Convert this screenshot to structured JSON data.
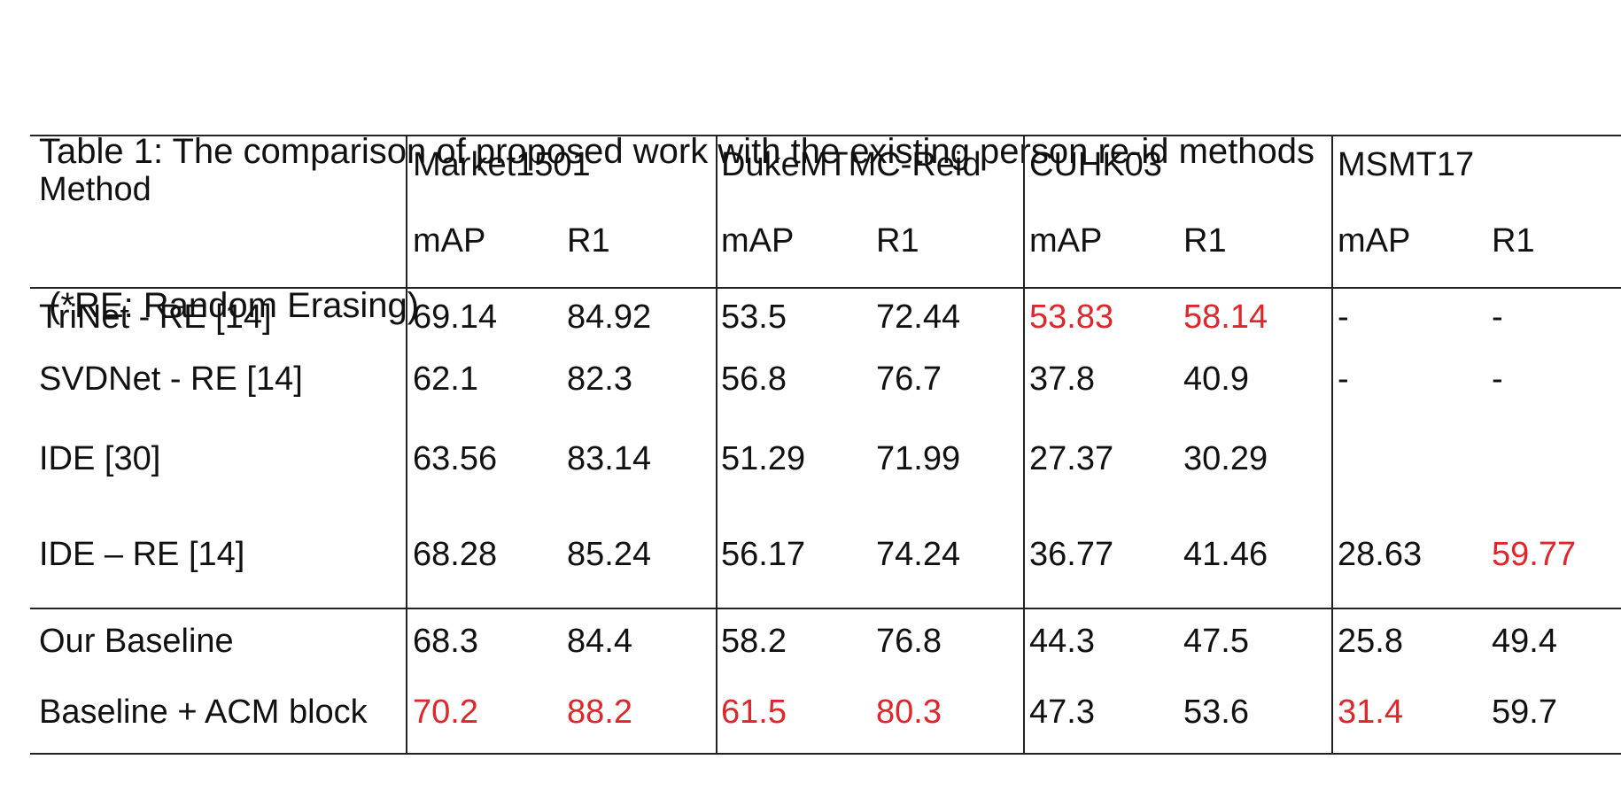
{
  "caption": {
    "line1": "Table 1: The comparison of proposed work with the existing person re-id methods",
    "line2": " (*RE: Random Erasing)"
  },
  "header": {
    "method": "Method",
    "datasets": [
      "Market1501",
      "DukeMTMC-Reid",
      "CUHK03",
      "MSMT17"
    ],
    "metrics": [
      "mAP",
      "R1",
      "mAP",
      "R1",
      "mAP",
      "R1",
      "mAP",
      "R1"
    ]
  },
  "rows": [
    {
      "method": "TriNet - RE [14]",
      "values": [
        "69.14",
        "84.92",
        "53.5",
        "72.44",
        "53.83",
        "58.14",
        "-",
        "-"
      ],
      "highlight": [
        false,
        false,
        false,
        false,
        true,
        true,
        false,
        false
      ]
    },
    {
      "method": "SVDNet - RE [14]",
      "values": [
        "62.1",
        "82.3",
        "56.8",
        "76.7",
        "37.8",
        "40.9",
        "-",
        "-"
      ],
      "highlight": [
        false,
        false,
        false,
        false,
        false,
        false,
        false,
        false
      ]
    },
    {
      "method": "IDE [30]",
      "values": [
        "63.56",
        "83.14",
        "51.29",
        "71.99",
        "27.37",
        "30.29",
        "",
        ""
      ],
      "highlight": [
        false,
        false,
        false,
        false,
        false,
        false,
        false,
        false
      ]
    },
    {
      "method": "IDE – RE [14]",
      "values": [
        "68.28",
        "85.24",
        "56.17",
        "74.24",
        "36.77",
        "41.46",
        "28.63",
        "59.77"
      ],
      "highlight": [
        false,
        false,
        false,
        false,
        false,
        false,
        false,
        true
      ]
    },
    {
      "method": "Our Baseline",
      "values": [
        "68.3",
        "84.4",
        "58.2",
        "76.8",
        "44.3",
        "47.5",
        "25.8",
        "49.4"
      ],
      "highlight": [
        false,
        false,
        false,
        false,
        false,
        false,
        false,
        false
      ]
    },
    {
      "method": "Baseline + ACM block",
      "values": [
        "70.2",
        "88.2",
        "61.5",
        "80.3",
        "47.3",
        "53.6",
        "31.4",
        "59.7"
      ],
      "highlight": [
        true,
        true,
        true,
        true,
        false,
        false,
        true,
        false
      ]
    }
  ],
  "colors": {
    "highlight": "#e0262b",
    "text": "#111111",
    "rule": "#222222"
  }
}
